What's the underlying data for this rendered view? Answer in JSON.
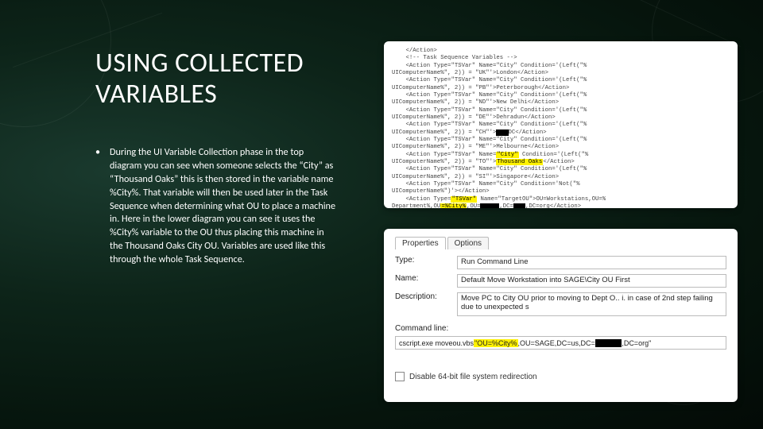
{
  "colors": {
    "background_gradient": [
      "#1a3a2e",
      "#0d2419",
      "#06150d",
      "#030a06"
    ],
    "highlight": "#fff200",
    "redaction": "#000000",
    "panel_bg": "#ffffff",
    "text_light": "#ffffff",
    "code_text": "#444444"
  },
  "title": "USING COLLECTED VARIABLES",
  "bullet": "During the UI Variable Collection phase in the top diagram you can see when someone selects the “City” as “Thousand Oaks” this is then stored in the variable name %City%. That variable will then be used later in the Task Sequence when determining what OU to place a machine in. Here in the lower diagram you can see it uses the %City% variable to the OU thus placing this machine in the Thousand Oaks City OU. Variables are used like this through the whole Task Sequence.",
  "code_panel": {
    "lines": [
      [
        {
          "t": "    </Action>"
        }
      ],
      [
        {
          "t": "    <!-- Task Sequence Variables -->"
        }
      ],
      [
        {
          "t": "    <Action Type=\"TSVar\" Name=\"City\" Condition='(Left(\"%"
        }
      ],
      [
        {
          "t": "UIComputerName%\", 2)) = \"UK\"'>London</Action>"
        }
      ],
      [
        {
          "t": "    <Action Type=\"TSVar\" Name=\"City\" Condition='(Left(\"%"
        }
      ],
      [
        {
          "t": "UIComputerName%\", 2)) = \"PB\"'>Peterborough</Action>"
        }
      ],
      [
        {
          "t": "    <Action Type=\"TSVar\" Name=\"City\" Condition='(Left(\"%"
        }
      ],
      [
        {
          "t": "UIComputerName%\", 2)) = \"ND\"'>New Delhi</Action>"
        }
      ],
      [
        {
          "t": "    <Action Type=\"TSVar\" Name=\"City\" Condition='(Left(\"%"
        }
      ],
      [
        {
          "t": "UIComputerName%\", 2)) = \"DE\"'>Dehradun</Action>"
        }
      ],
      [
        {
          "t": "    <Action Type=\"TSVar\" Name=\"City\" Condition='(Left(\"%"
        }
      ],
      [
        {
          "t": "UIComputerName%\", 2)) = \"CH\"'>"
        },
        {
          "t": "xxx",
          "cls": "blk"
        },
        {
          "t": "DC</Action>"
        }
      ],
      [
        {
          "t": "    <Action Type=\"TSVar\" Name=\"City\" Condition='(Left(\"%"
        }
      ],
      [
        {
          "t": "UIComputerName%\", 2)) = \"ME\"'>Melbourne</Action>"
        }
      ],
      [
        {
          "t": "    <Action Type=\"TSVar\" Name="
        },
        {
          "t": "\"City\"",
          "cls": "hl"
        },
        {
          "t": " Condition='(Left(\"%"
        }
      ],
      [
        {
          "t": "UIComputerName%\", 2)) = \"TO\"'>"
        },
        {
          "t": "Thousand Oaks",
          "cls": "hl"
        },
        {
          "t": "</Action>"
        }
      ],
      [
        {
          "t": "    <Action Type=\"TSVar\" Name=\"City\" Condition='(Left(\"%"
        }
      ],
      [
        {
          "t": "UIComputerName%\", 2)) = \"SI\"'>Singapore</Action>"
        }
      ],
      [
        {
          "t": "    <Action Type=\"TSVar\" Name=\"City\" Condition='Not(\"%"
        }
      ],
      [
        {
          "t": "UIComputerName%\")'></Action>"
        }
      ],
      [
        {
          "t": "    <Action Type="
        },
        {
          "t": "\"TSVar\"",
          "cls": "hl"
        },
        {
          "t": " Name=\"TargetOU\">OU=Workstations,OU=%"
        }
      ],
      [
        {
          "t": "Department%,OU"
        },
        {
          "t": "=%City%",
          "cls": "hl"
        },
        {
          "t": ",OU="
        },
        {
          "t": "xxxxx",
          "cls": "blk"
        },
        {
          "t": ",DC="
        },
        {
          "t": "xxx",
          "cls": "blk"
        },
        {
          "t": ",DC=org</Action>"
        }
      ]
    ]
  },
  "props_panel": {
    "tabs": [
      "Properties",
      "Options"
    ],
    "active_tab": 0,
    "type_label": "Type:",
    "type_value": "Run Command Line",
    "name_label": "Name:",
    "name_value": "Default Move Workstation into SAGE\\City OU First",
    "desc_label": "Description:",
    "desc_value": "Move PC to City OU prior to moving to Dept O.. i. in case of 2nd step failing due to unexpected s",
    "cmd_section": "Command line:",
    "cmd_segments": [
      {
        "t": "cscript.exe moveou.vbs "
      },
      {
        "t": "\"OU=%City%",
        "cls": "hl"
      },
      {
        "t": ",OU=SAGE,DC=us,DC="
      },
      {
        "t": "xxxxxxx",
        "cls": "blk"
      },
      {
        "t": ",DC=org\""
      }
    ],
    "checkbox_label": "Disable 64-bit file system redirection"
  }
}
